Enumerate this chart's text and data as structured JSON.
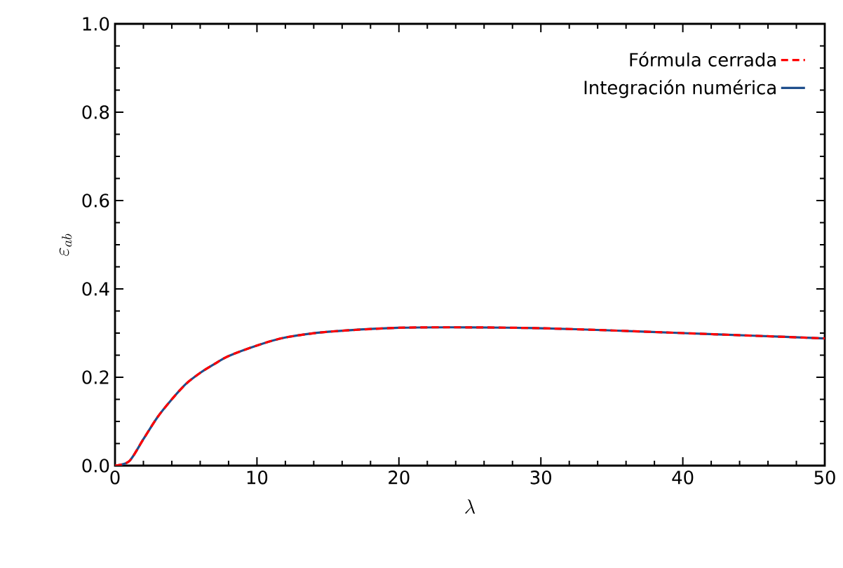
{
  "chart_data": {
    "type": "line",
    "xlabel": "\\lambda",
    "ylabel": "\\varepsilon_{ab}",
    "x": [
      0,
      1,
      2,
      3,
      4,
      5,
      6,
      7,
      8,
      10,
      12,
      15,
      20,
      25,
      30,
      35,
      40,
      45,
      50
    ],
    "series": [
      {
        "name": "Fórmula cerrada",
        "color": "#ff0000",
        "line_style": "dashed",
        "values": [
          0,
          0.01,
          0.06,
          0.11,
          0.15,
          0.185,
          0.21,
          0.23,
          0.248,
          0.272,
          0.29,
          0.303,
          0.312,
          0.313,
          0.311,
          0.306,
          0.3,
          0.294,
          0.288
        ]
      },
      {
        "name": "Integración numérica",
        "color": "#1f4e8c",
        "line_style": "solid",
        "values": [
          0,
          0.01,
          0.06,
          0.11,
          0.15,
          0.185,
          0.21,
          0.23,
          0.248,
          0.272,
          0.29,
          0.303,
          0.312,
          0.313,
          0.311,
          0.306,
          0.3,
          0.294,
          0.288
        ]
      }
    ],
    "xlim": [
      0,
      50
    ],
    "ylim": [
      0,
      1.0
    ],
    "xticks": [
      0,
      10,
      20,
      30,
      40,
      50
    ],
    "yticks": [
      {
        "value": 0,
        "label": "0.0"
      },
      0.2,
      0.4,
      0.6,
      0.8,
      {
        "value": 1.0,
        "label": "1.0"
      }
    ],
    "legend": "top right",
    "grid": false
  }
}
